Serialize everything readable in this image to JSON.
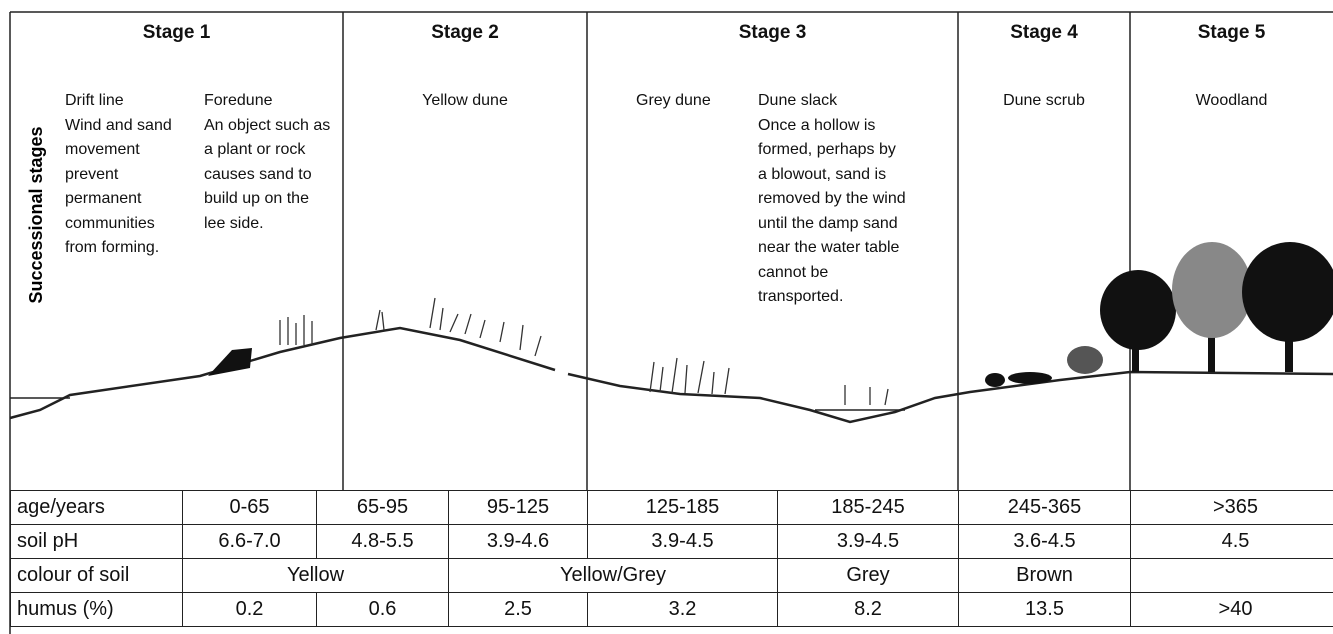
{
  "axis_label": "Successional stages",
  "stages": [
    {
      "title": "Stage 1",
      "zones": [
        {
          "name": "Drift line",
          "description": "Wind and sand movement prevent permanent communities from forming."
        },
        {
          "name": "Foredune",
          "description": "An object such as a plant or rock causes sand to build up on the lee side."
        }
      ]
    },
    {
      "title": "Stage 2",
      "zones": [
        {
          "name": "Yellow dune"
        }
      ]
    },
    {
      "title": "Stage 3",
      "zones": [
        {
          "name": "Grey dune"
        },
        {
          "name": "Dune slack",
          "description": "Once a hollow is formed, perhaps by a blowout, sand is removed by the wind until the damp sand near the water table cannot be transported."
        }
      ]
    },
    {
      "title": "Stage 4",
      "zones": [
        {
          "name": "Dune scrub"
        }
      ]
    },
    {
      "title": "Stage 5",
      "zones": [
        {
          "name": "Woodland"
        }
      ]
    }
  ],
  "table": {
    "rows": [
      {
        "label": "age/years",
        "cells": [
          "0-65",
          "65-95",
          "95-125",
          "125-185",
          "185-245",
          "245-365",
          ">365"
        ]
      },
      {
        "label": "soil pH",
        "cells": [
          "6.6-7.0",
          "4.8-5.5",
          "3.9-4.6",
          "3.9-4.5",
          "3.9-4.5",
          "3.6-4.5",
          4.5
        ]
      },
      {
        "label": "colour of soil",
        "cells": [
          "Yellow",
          "Yellow/Grey",
          "Grey",
          "Brown"
        ]
      },
      {
        "label": "humus (%)",
        "cells": [
          0.2,
          0.6,
          2.5,
          3.2,
          8.2,
          13.5,
          ">40"
        ]
      }
    ]
  }
}
